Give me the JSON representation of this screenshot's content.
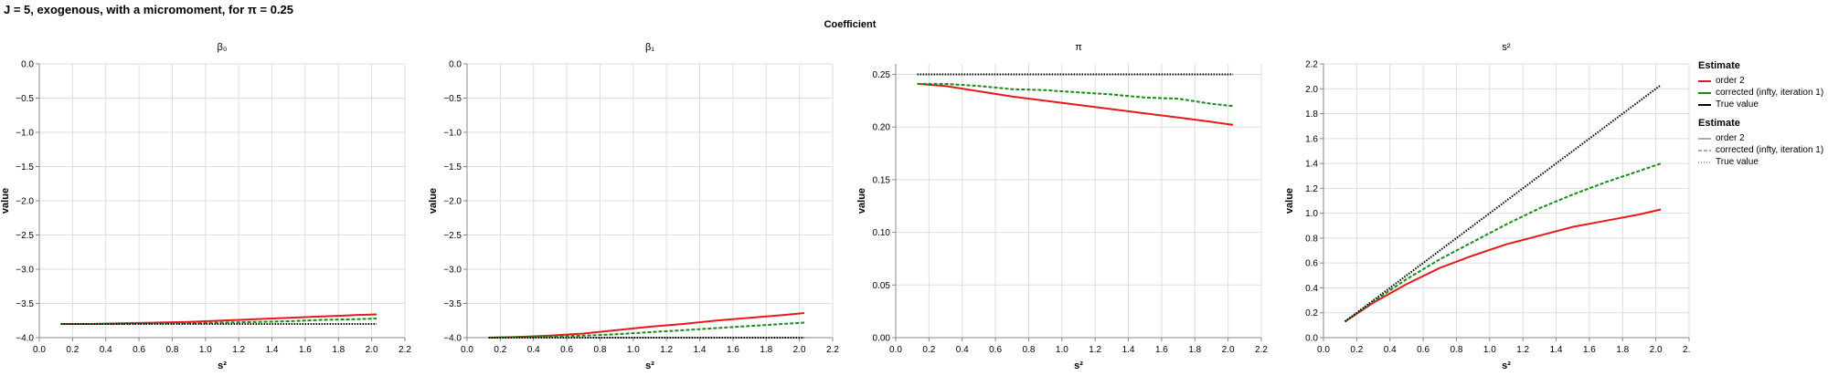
{
  "title": "J = 5, exogenous, with a micromoment,  for π = 0.25",
  "facet_title": "Coefficient",
  "legend": {
    "color_title": "Estimate",
    "dash_title": "Estimate",
    "entries": [
      "order 2",
      "corrected (infty, iteration 1)",
      "True value"
    ],
    "colors": [
      "#e41a1c",
      "#1a8a1a",
      "#000000"
    ]
  },
  "chart_data": [
    {
      "type": "line",
      "title": "β₀",
      "xlabel": "s²",
      "ylabel": "value",
      "xlim": [
        0,
        2.2
      ],
      "ylim": [
        -4.0,
        0.0
      ],
      "xticks": [
        "0.0",
        "0.2",
        "0.4",
        "0.6",
        "0.8",
        "1.0",
        "1.2",
        "1.4",
        "1.6",
        "1.8",
        "2.0",
        "2.2"
      ],
      "yticks": [
        "0.0",
        "−0.5",
        "−1.0",
        "−1.5",
        "−2.0",
        "−2.5",
        "−3.0",
        "−3.5",
        "−4.0"
      ],
      "x": [
        0.13,
        0.3,
        0.5,
        0.7,
        0.9,
        1.1,
        1.3,
        1.5,
        1.7,
        1.9,
        2.03
      ],
      "series": [
        {
          "name": "order 2",
          "values": [
            -3.8,
            -3.8,
            -3.79,
            -3.78,
            -3.77,
            -3.75,
            -3.73,
            -3.71,
            -3.69,
            -3.67,
            -3.66
          ]
        },
        {
          "name": "corrected (infty, iteration 1)",
          "values": [
            -3.8,
            -3.8,
            -3.8,
            -3.79,
            -3.79,
            -3.78,
            -3.77,
            -3.76,
            -3.74,
            -3.73,
            -3.72
          ]
        },
        {
          "name": "True value",
          "values": [
            -3.8,
            -3.8,
            -3.8,
            -3.8,
            -3.8,
            -3.8,
            -3.8,
            -3.8,
            -3.8,
            -3.8,
            -3.8
          ]
        }
      ]
    },
    {
      "type": "line",
      "title": "β₁",
      "xlabel": "s²",
      "ylabel": "value",
      "xlim": [
        0,
        2.2
      ],
      "ylim": [
        -4.0,
        0.0
      ],
      "xticks": [
        "0.0",
        "0.2",
        "0.4",
        "0.6",
        "0.8",
        "1.0",
        "1.2",
        "1.4",
        "1.6",
        "1.8",
        "2.0",
        "2.2"
      ],
      "yticks": [
        "0.0",
        "−0.5",
        "−1.0",
        "−1.5",
        "−2.0",
        "−2.5",
        "−3.0",
        "−3.5",
        "−4.0"
      ],
      "x": [
        0.13,
        0.3,
        0.5,
        0.7,
        0.9,
        1.1,
        1.3,
        1.5,
        1.7,
        1.9,
        2.03
      ],
      "series": [
        {
          "name": "order 2",
          "values": [
            -4.0,
            -3.99,
            -3.97,
            -3.94,
            -3.89,
            -3.84,
            -3.8,
            -3.75,
            -3.71,
            -3.67,
            -3.64
          ]
        },
        {
          "name": "corrected (infty, iteration 1)",
          "values": [
            -4.0,
            -3.99,
            -3.98,
            -3.97,
            -3.95,
            -3.92,
            -3.89,
            -3.86,
            -3.83,
            -3.8,
            -3.78
          ]
        },
        {
          "name": "True value",
          "values": [
            -4.0,
            -4.0,
            -4.0,
            -4.0,
            -4.0,
            -4.0,
            -4.0,
            -4.0,
            -4.0,
            -4.0,
            -4.0
          ]
        }
      ]
    },
    {
      "type": "line",
      "title": "π",
      "xlabel": "s²",
      "ylabel": "value",
      "xlim": [
        0,
        2.2
      ],
      "ylim": [
        0.0,
        0.26
      ],
      "xticks": [
        "0.0",
        "0.2",
        "0.4",
        "0.6",
        "0.8",
        "1.0",
        "1.2",
        "1.4",
        "1.6",
        "1.8",
        "2.0",
        "2.2"
      ],
      "yticks": [
        "0.25",
        "0.20",
        "0.15",
        "0.10",
        "0.05",
        "0.00"
      ],
      "x": [
        0.13,
        0.3,
        0.5,
        0.7,
        0.9,
        1.1,
        1.3,
        1.5,
        1.7,
        1.9,
        2.03
      ],
      "series": [
        {
          "name": "order 2",
          "values": [
            0.241,
            0.239,
            0.234,
            0.229,
            0.225,
            0.221,
            0.217,
            0.213,
            0.209,
            0.205,
            0.202
          ]
        },
        {
          "name": "corrected (infty, iteration 1)",
          "values": [
            0.241,
            0.241,
            0.239,
            0.236,
            0.235,
            0.233,
            0.231,
            0.228,
            0.227,
            0.222,
            0.22
          ]
        },
        {
          "name": "True value",
          "values": [
            0.25,
            0.25,
            0.25,
            0.25,
            0.25,
            0.25,
            0.25,
            0.25,
            0.25,
            0.25,
            0.25
          ]
        }
      ]
    },
    {
      "type": "line",
      "title": "s²",
      "xlabel": "s²",
      "ylabel": "value",
      "xlim": [
        0,
        2.2
      ],
      "ylim": [
        0.0,
        2.2
      ],
      "xticks": [
        "0.0",
        "0.2",
        "0.4",
        "0.6",
        "0.8",
        "1.0",
        "1.2",
        "1.4",
        "1.6",
        "1.8",
        "2.0",
        "2.2"
      ],
      "yticks": [
        "2.2",
        "2.0",
        "1.8",
        "1.6",
        "1.4",
        "1.2",
        "1.0",
        "0.8",
        "0.6",
        "0.4",
        "0.2",
        "0.0"
      ],
      "x": [
        0.13,
        0.3,
        0.5,
        0.7,
        0.9,
        1.1,
        1.3,
        1.5,
        1.7,
        1.9,
        2.03
      ],
      "series": [
        {
          "name": "order 2",
          "values": [
            0.13,
            0.28,
            0.43,
            0.56,
            0.66,
            0.75,
            0.82,
            0.89,
            0.94,
            0.99,
            1.03
          ]
        },
        {
          "name": "corrected (infty, iteration 1)",
          "values": [
            0.13,
            0.29,
            0.47,
            0.63,
            0.77,
            0.91,
            1.04,
            1.15,
            1.25,
            1.34,
            1.4
          ]
        },
        {
          "name": "True value",
          "values": [
            0.13,
            0.3,
            0.5,
            0.7,
            0.9,
            1.1,
            1.3,
            1.5,
            1.7,
            1.9,
            2.03
          ]
        }
      ]
    }
  ]
}
